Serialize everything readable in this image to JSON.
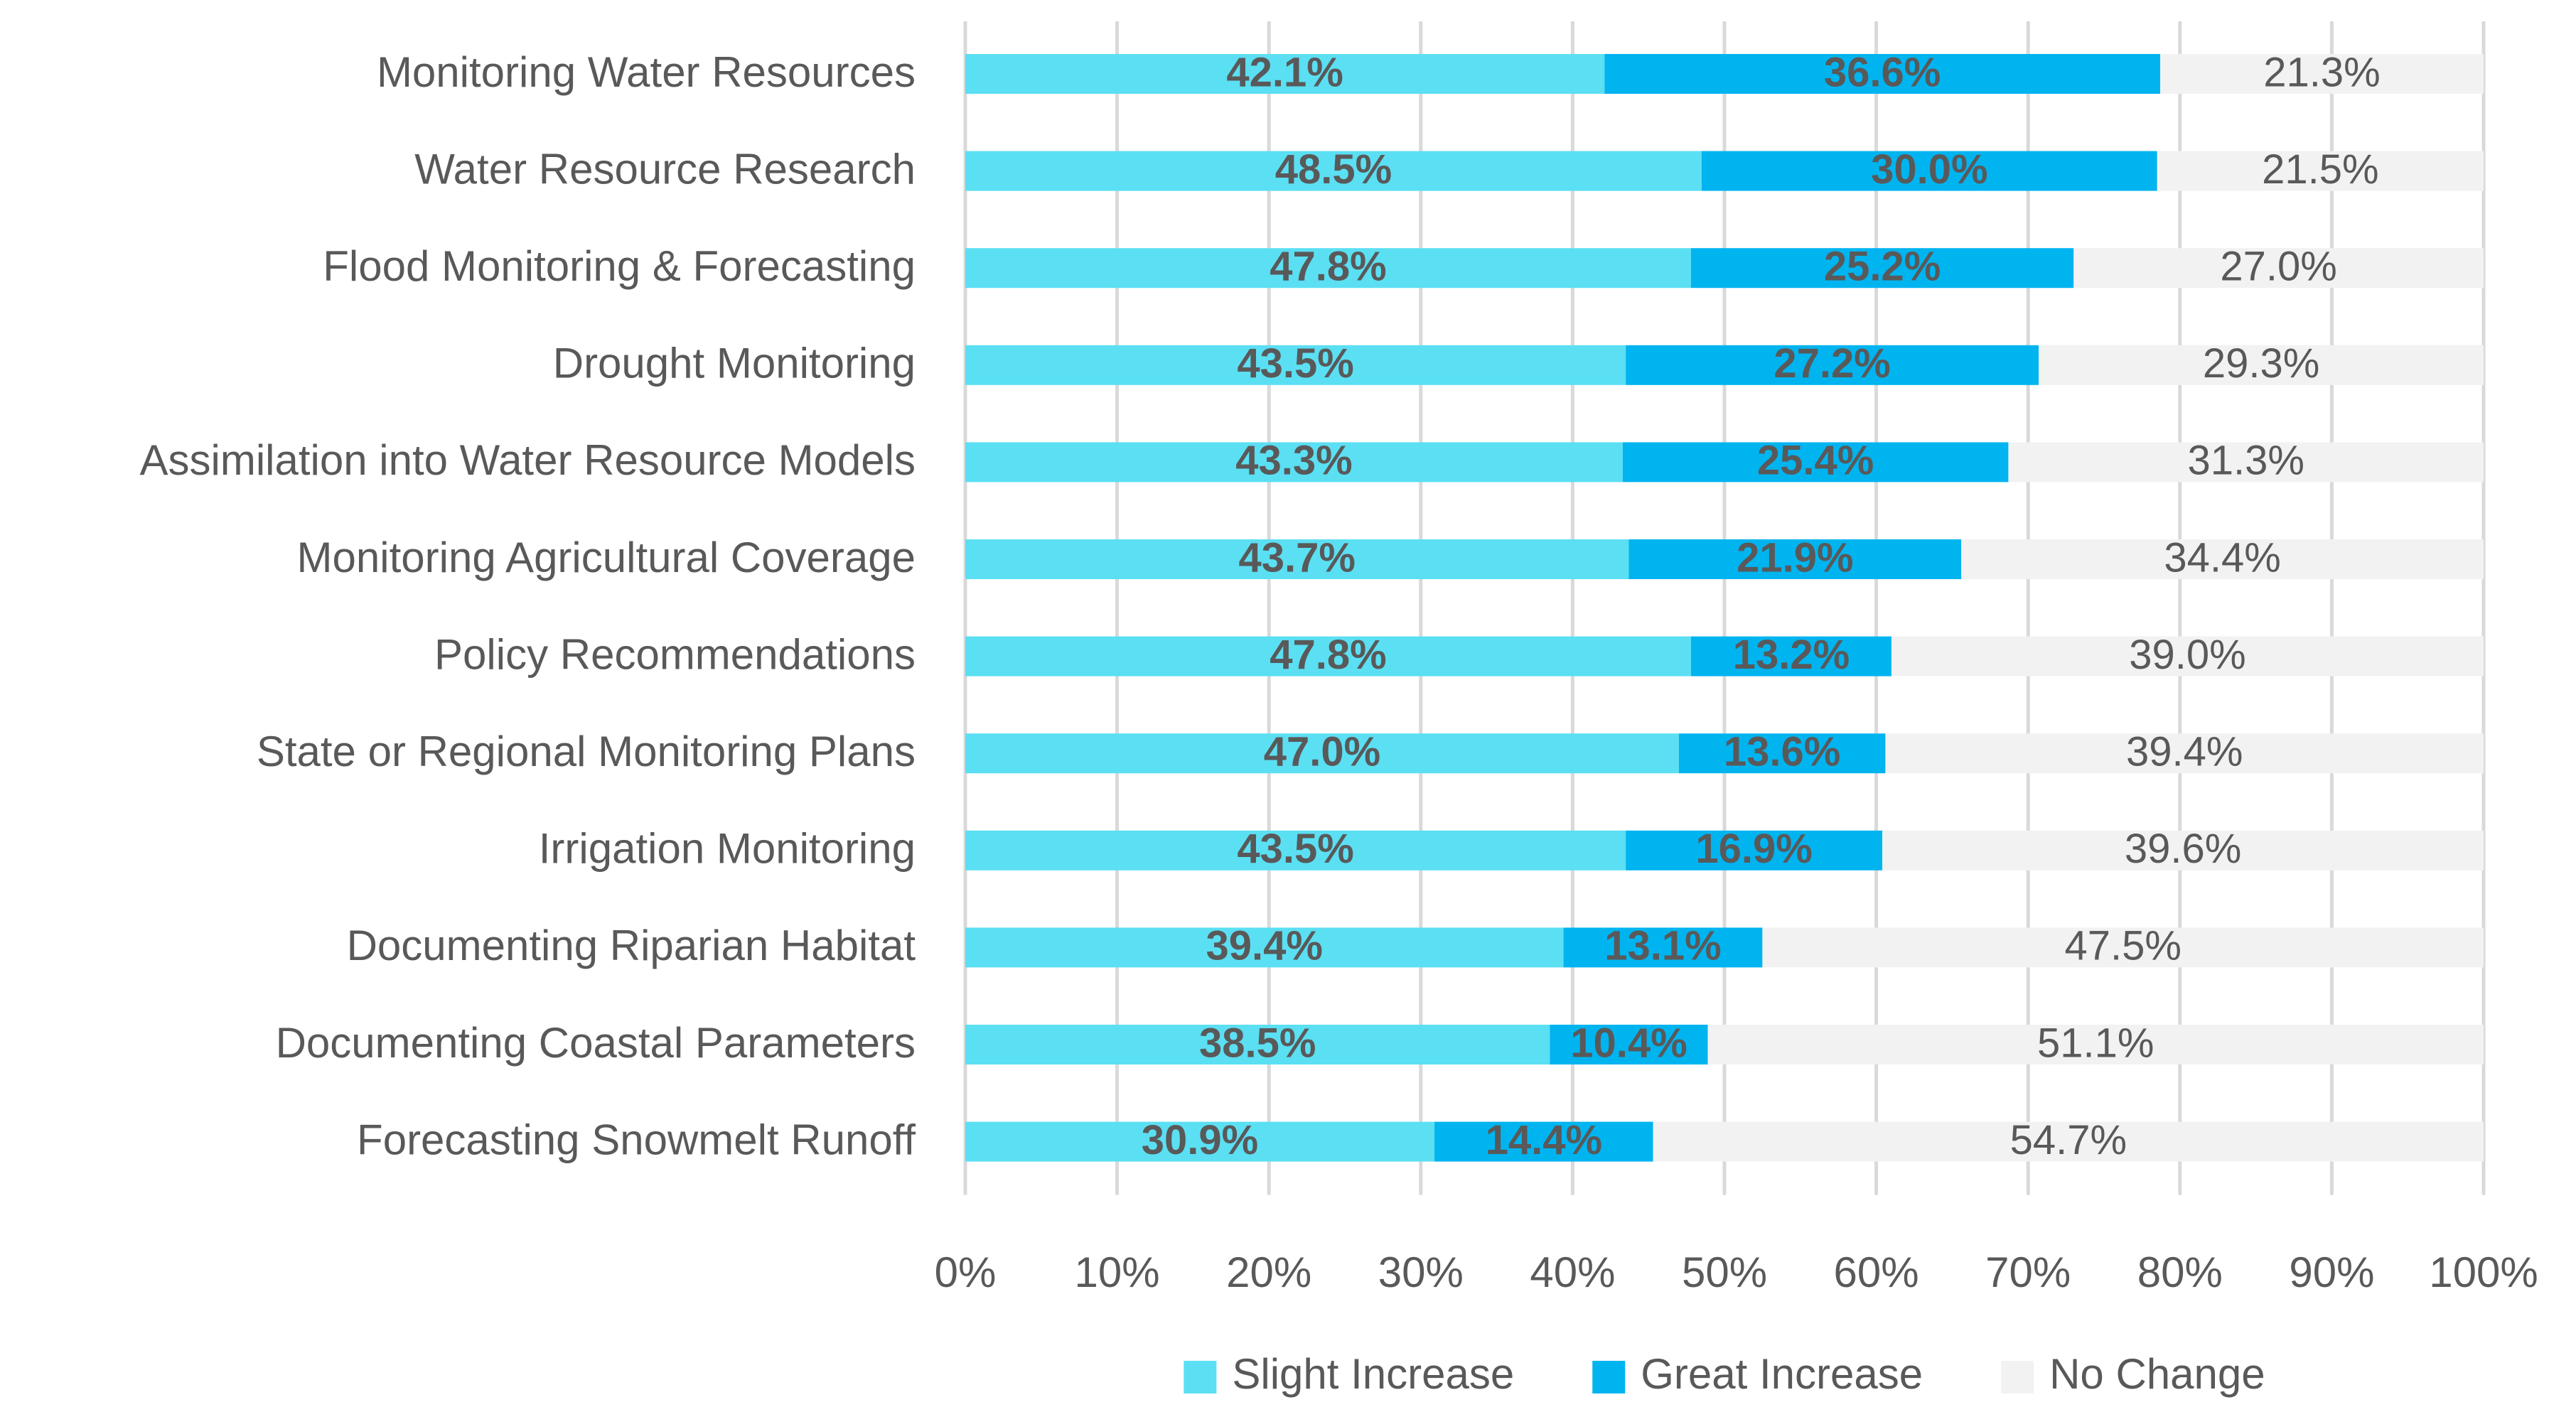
{
  "chart_data": {
    "type": "bar",
    "orientation": "horizontal",
    "stacked": true,
    "percent_stacked": true,
    "title": "",
    "xlabel": "",
    "ylabel": "",
    "xlim": [
      0,
      100
    ],
    "grid": true,
    "legend_position": "bottom",
    "x_ticks": [
      "0%",
      "10%",
      "20%",
      "30%",
      "40%",
      "50%",
      "60%",
      "70%",
      "80%",
      "90%",
      "100%"
    ],
    "categories": [
      "Monitoring Water Resources",
      "Water Resource Research",
      "Flood Monitoring & Forecasting",
      "Drought Monitoring",
      "Assimilation into Water Resource Models",
      "Monitoring Agricultural Coverage",
      "Policy Recommendations",
      "State or Regional Monitoring Plans",
      "Irrigation Monitoring",
      "Documenting Riparian Habitat",
      "Documenting Coastal Parameters",
      "Forecasting Snowmelt Runoff"
    ],
    "series": [
      {
        "name": "Slight Increase",
        "color": "#5BDFF3",
        "label_weight": "bold",
        "values": [
          42.1,
          48.5,
          47.8,
          43.5,
          43.3,
          43.7,
          47.8,
          47.0,
          43.5,
          39.4,
          38.5,
          30.9
        ],
        "labels": [
          "42.1%",
          "48.5%",
          "47.8%",
          "43.5%",
          "43.3%",
          "43.7%",
          "47.8%",
          "47.0%",
          "43.5%",
          "39.4%",
          "38.5%",
          "30.9%"
        ]
      },
      {
        "name": "Great Increase",
        "color": "#00B4F0",
        "label_weight": "bold",
        "values": [
          36.6,
          30.0,
          25.2,
          27.2,
          25.4,
          21.9,
          13.2,
          13.6,
          16.9,
          13.1,
          10.4,
          14.4
        ],
        "labels": [
          "36.6%",
          "30.0%",
          "25.2%",
          "27.2%",
          "25.4%",
          "21.9%",
          "13.2%",
          "13.6%",
          "16.9%",
          "13.1%",
          "10.4%",
          "14.4%"
        ]
      },
      {
        "name": "No Change",
        "color": "#F2F2F2",
        "label_weight": "normal",
        "values": [
          21.3,
          21.5,
          27.0,
          29.3,
          31.3,
          34.4,
          39.0,
          39.4,
          39.6,
          47.5,
          51.1,
          54.7
        ],
        "labels": [
          "21.3%",
          "21.5%",
          "27.0%",
          "29.3%",
          "31.3%",
          "34.4%",
          "39.0%",
          "39.4%",
          "39.6%",
          "47.5%",
          "51.1%",
          "54.7%"
        ]
      }
    ]
  }
}
